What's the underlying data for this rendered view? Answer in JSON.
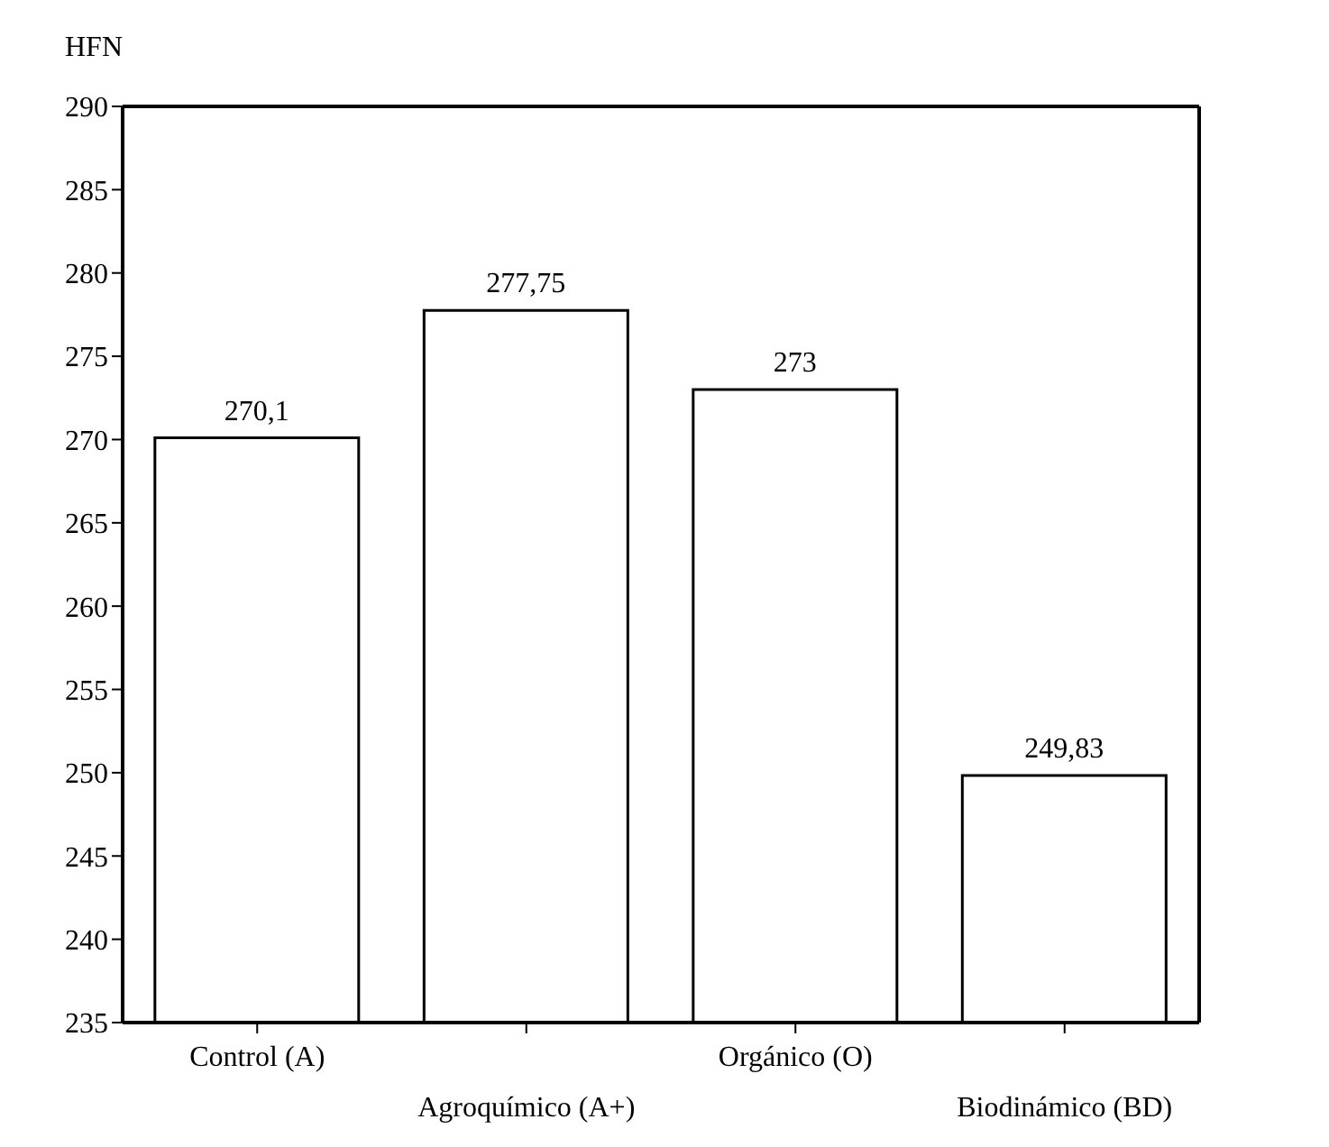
{
  "chart_data": {
    "type": "bar",
    "ylabel": "HFN",
    "categories": [
      "Control (A)",
      "Agroquímico (A+)",
      "Orgánico (O)",
      "Biodinámico (BD)"
    ],
    "values": [
      270.1,
      277.75,
      273,
      249.83
    ],
    "value_labels": [
      "270,1",
      "277,75",
      "273",
      "249,83"
    ],
    "color": "#ffffff",
    "ylim": [
      235,
      290
    ],
    "yticks": [
      235,
      240,
      245,
      250,
      255,
      260,
      265,
      270,
      275,
      280,
      285,
      290
    ],
    "grid": false
  }
}
